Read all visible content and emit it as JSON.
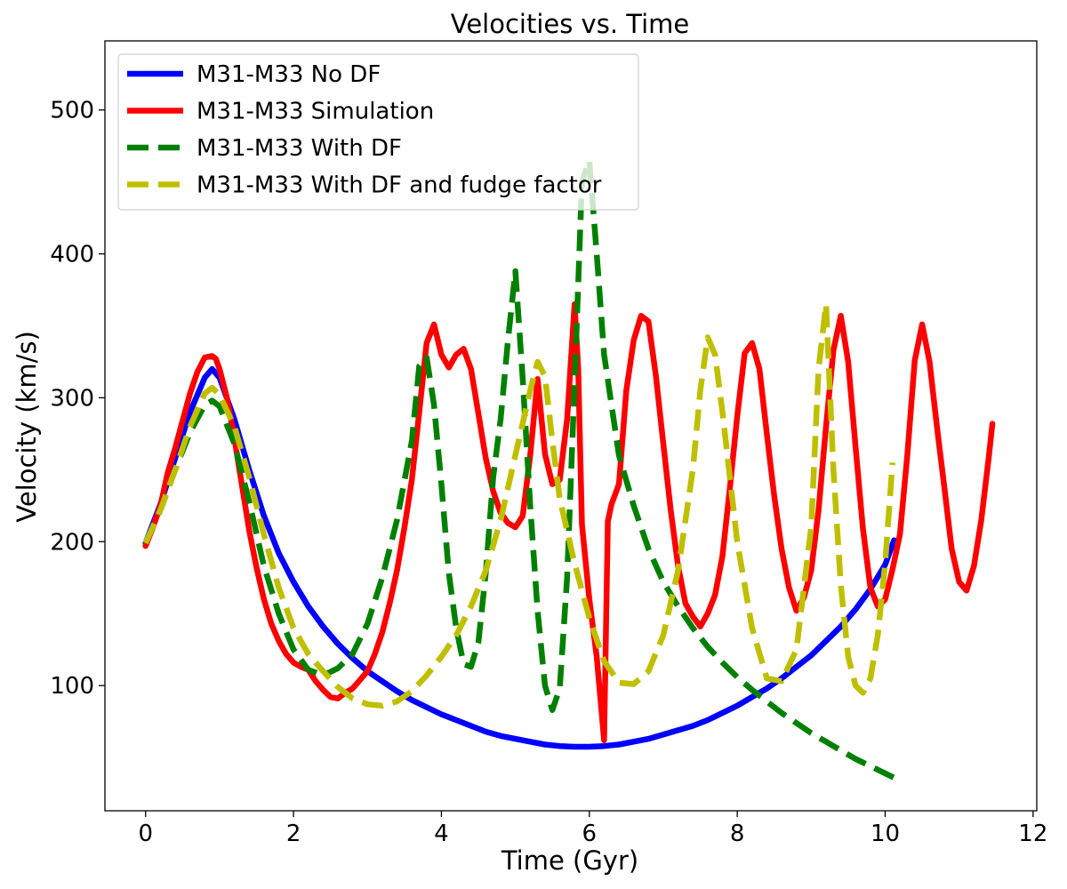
{
  "chart_data": {
    "type": "line",
    "title": "Velocities vs. Time",
    "xlabel": "Time (Gyr)",
    "ylabel": "Velocity (km/s)",
    "xlim": [
      -0.55,
      12.05
    ],
    "ylim": [
      13,
      548
    ],
    "xticks": [
      0,
      2,
      4,
      6,
      8,
      10,
      12
    ],
    "yticks": [
      100,
      200,
      300,
      400,
      500
    ],
    "grid": false,
    "legend_position": "upper-left",
    "series": [
      {
        "name": "M31-M33 No DF",
        "color": "#0000ff",
        "style": "solid",
        "x": [
          0.0,
          0.2,
          0.4,
          0.6,
          0.8,
          0.9,
          1.0,
          1.2,
          1.4,
          1.6,
          1.8,
          2.0,
          2.2,
          2.4,
          2.6,
          2.8,
          3.0,
          3.2,
          3.4,
          3.6,
          3.8,
          4.0,
          4.2,
          4.4,
          4.6,
          4.8,
          5.0,
          5.2,
          5.4,
          5.6,
          5.8,
          6.0,
          6.2,
          6.4,
          6.6,
          6.8,
          7.0,
          7.2,
          7.4,
          7.6,
          7.8,
          8.0,
          8.2,
          8.4,
          8.6,
          8.8,
          9.0,
          9.2,
          9.4,
          9.6,
          9.8,
          10.0,
          10.12
        ],
        "y": [
          199,
          226,
          258,
          290,
          314,
          320,
          314,
          285,
          250,
          218,
          192,
          172,
          155,
          141,
          129,
          119,
          110,
          103,
          96,
          90,
          85,
          80,
          76,
          72,
          68,
          65,
          63,
          61,
          59,
          58,
          57.5,
          57.5,
          58,
          59,
          61,
          63,
          66,
          69,
          72,
          76,
          81,
          86,
          92,
          98,
          105,
          113,
          121,
          131,
          141,
          153,
          167,
          184,
          201
        ]
      },
      {
        "name": "M31-M33 Simulation",
        "color": "#ff0000",
        "style": "solid",
        "x": [
          0.0,
          0.1,
          0.2,
          0.3,
          0.4,
          0.5,
          0.6,
          0.7,
          0.8,
          0.9,
          0.95,
          1.0,
          1.1,
          1.2,
          1.3,
          1.4,
          1.5,
          1.6,
          1.7,
          1.8,
          1.9,
          2.0,
          2.1,
          2.2,
          2.3,
          2.4,
          2.5,
          2.6,
          2.7,
          2.8,
          2.9,
          3.0,
          3.1,
          3.2,
          3.3,
          3.4,
          3.5,
          3.6,
          3.7,
          3.8,
          3.9,
          4.0,
          4.1,
          4.2,
          4.3,
          4.4,
          4.5,
          4.6,
          4.7,
          4.8,
          4.9,
          5.0,
          5.1,
          5.2,
          5.3,
          5.4,
          5.5,
          5.6,
          5.7,
          5.8,
          5.85,
          5.9,
          6.0,
          6.1,
          6.2,
          6.25,
          6.3,
          6.4,
          6.5,
          6.6,
          6.7,
          6.8,
          6.9,
          7.0,
          7.1,
          7.2,
          7.3,
          7.4,
          7.5,
          7.6,
          7.7,
          7.8,
          7.9,
          8.0,
          8.1,
          8.2,
          8.3,
          8.4,
          8.5,
          8.6,
          8.7,
          8.8,
          8.9,
          9.0,
          9.1,
          9.2,
          9.3,
          9.4,
          9.5,
          9.6,
          9.7,
          9.8,
          9.9,
          10.0,
          10.1,
          10.2,
          10.3,
          10.4,
          10.5,
          10.6,
          10.7,
          10.8,
          10.9,
          11.0,
          11.1,
          11.2,
          11.3,
          11.4,
          11.45
        ],
        "y": [
          197,
          210,
          225,
          248,
          265,
          284,
          303,
          318,
          328,
          329,
          327,
          320,
          300,
          272,
          240,
          208,
          182,
          160,
          143,
          131,
          122,
          116,
          113,
          111,
          103,
          97,
          92,
          91,
          95,
          98,
          104,
          110,
          122,
          137,
          157,
          180,
          210,
          243,
          290,
          338,
          351,
          330,
          321,
          330,
          334,
          320,
          289,
          258,
          235,
          220,
          213,
          210,
          218,
          260,
          313,
          261,
          240,
          243,
          285,
          365,
          320,
          212,
          160,
          120,
          62,
          214,
          226,
          240,
          305,
          340,
          357,
          353,
          315,
          268,
          222,
          183,
          157,
          148,
          141,
          150,
          163,
          190,
          237,
          287,
          331,
          338,
          320,
          275,
          232,
          195,
          168,
          152,
          161,
          180,
          222,
          280,
          333,
          357,
          325,
          266,
          209,
          168,
          155,
          160,
          181,
          205,
          260,
          326,
          351,
          325,
          280,
          238,
          195,
          172,
          166,
          183,
          215,
          258,
          282
        ]
      },
      {
        "name": "M31-M33 With DF",
        "color": "#008000",
        "style": "dashed",
        "x": [
          0.0,
          0.2,
          0.4,
          0.6,
          0.8,
          0.9,
          1.0,
          1.2,
          1.4,
          1.6,
          1.8,
          2.0,
          2.2,
          2.4,
          2.6,
          2.8,
          3.0,
          3.2,
          3.4,
          3.6,
          3.7,
          3.8,
          3.9,
          4.0,
          4.1,
          4.2,
          4.3,
          4.4,
          4.5,
          4.6,
          4.7,
          4.8,
          4.9,
          5.0,
          5.1,
          5.2,
          5.3,
          5.4,
          5.5,
          5.6,
          5.7,
          5.8,
          5.9,
          6.0,
          6.1,
          6.2,
          6.4,
          6.6,
          6.8,
          7.0,
          7.2,
          7.4,
          7.6,
          7.8,
          8.0,
          8.2,
          8.4,
          8.6,
          8.8,
          9.0,
          9.2,
          9.4,
          9.6,
          9.8,
          10.0,
          10.12
        ],
        "y": [
          199,
          222,
          250,
          276,
          295,
          298,
          294,
          268,
          228,
          183,
          150,
          125,
          111,
          107,
          112,
          122,
          143,
          175,
          215,
          270,
          322,
          328,
          295,
          240,
          178,
          140,
          115,
          113,
          130,
          178,
          245,
          285,
          340,
          388,
          313,
          225,
          152,
          100,
          83,
          98,
          175,
          310,
          450,
          465,
          400,
          330,
          260,
          225,
          195,
          172,
          155,
          140,
          127,
          116,
          106,
          97,
          89,
          81,
          74,
          67,
          61,
          55,
          49,
          44,
          39,
          36
        ]
      },
      {
        "name": "M31-M33 With DF and fudge factor",
        "color": "#bfbf00",
        "style": "dashed",
        "x": [
          0.0,
          0.2,
          0.4,
          0.6,
          0.8,
          0.9,
          1.0,
          1.2,
          1.4,
          1.6,
          1.8,
          2.0,
          2.2,
          2.4,
          2.6,
          2.8,
          3.0,
          3.2,
          3.4,
          3.6,
          3.8,
          4.0,
          4.2,
          4.4,
          4.6,
          4.8,
          5.0,
          5.2,
          5.3,
          5.4,
          5.5,
          5.6,
          5.8,
          6.0,
          6.2,
          6.4,
          6.6,
          6.8,
          7.0,
          7.2,
          7.4,
          7.5,
          7.6,
          7.7,
          7.8,
          8.0,
          8.2,
          8.4,
          8.6,
          8.8,
          9.0,
          9.1,
          9.2,
          9.3,
          9.4,
          9.5,
          9.6,
          9.7,
          9.8,
          9.9,
          10.0,
          10.1
        ],
        "y": [
          199,
          222,
          250,
          280,
          303,
          307,
          302,
          280,
          245,
          205,
          168,
          140,
          122,
          110,
          99,
          91,
          87,
          86,
          89,
          96,
          107,
          120,
          135,
          155,
          180,
          215,
          260,
          305,
          325,
          315,
          270,
          230,
          185,
          147,
          117,
          102,
          101,
          110,
          135,
          180,
          250,
          305,
          342,
          330,
          290,
          200,
          140,
          105,
          103,
          125,
          210,
          320,
          365,
          250,
          170,
          120,
          100,
          95,
          105,
          135,
          185,
          255
        ]
      }
    ]
  }
}
